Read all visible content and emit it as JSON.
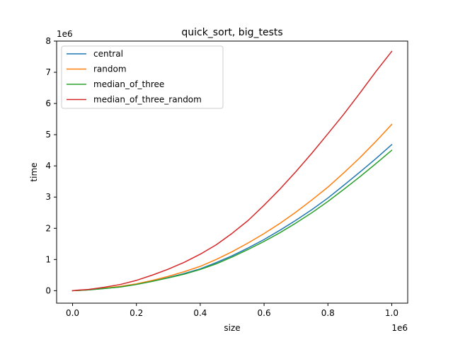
{
  "chart_data": {
    "type": "line",
    "title": "quick_sort, big_tests",
    "xlabel": "size",
    "ylabel": "time",
    "x_offset_label": "1e6",
    "y_offset_label": "1e6",
    "xlim": [
      -50000,
      1050000
    ],
    "ylim": [
      -400000,
      8000000
    ],
    "x_ticks": [
      0,
      200000,
      400000,
      600000,
      800000,
      1000000
    ],
    "x_tick_labels": [
      "0.0",
      "0.2",
      "0.4",
      "0.6",
      "0.8",
      "1.0"
    ],
    "y_ticks": [
      0,
      1000000,
      2000000,
      3000000,
      4000000,
      5000000,
      6000000,
      7000000,
      8000000
    ],
    "y_tick_labels": [
      "0",
      "1",
      "2",
      "3",
      "4",
      "5",
      "6",
      "7",
      "8"
    ],
    "grid": false,
    "legend_position": "top-left",
    "x": [
      0,
      20000,
      50000,
      100000,
      150000,
      200000,
      250000,
      300000,
      350000,
      400000,
      450000,
      500000,
      550000,
      600000,
      650000,
      700000,
      750000,
      800000,
      850000,
      900000,
      950000,
      1000000
    ],
    "series": [
      {
        "name": "central",
        "color": "#1f77b4",
        "values": [
          0,
          10000,
          25000,
          70000,
          120000,
          200000,
          300000,
          420000,
          550000,
          700000,
          900000,
          1120000,
          1370000,
          1640000,
          1940000,
          2260000,
          2600000,
          2970000,
          3380000,
          3800000,
          4230000,
          4680000
        ]
      },
      {
        "name": "random",
        "color": "#ff7f0e",
        "values": [
          0,
          10000,
          30000,
          80000,
          140000,
          220000,
          330000,
          460000,
          610000,
          780000,
          1000000,
          1250000,
          1530000,
          1830000,
          2160000,
          2520000,
          2910000,
          3320000,
          3780000,
          4260000,
          4780000,
          5330000
        ]
      },
      {
        "name": "median_of_three",
        "color": "#2ca02c",
        "values": [
          0,
          10000,
          25000,
          70000,
          120000,
          200000,
          300000,
          410000,
          530000,
          680000,
          860000,
          1080000,
          1320000,
          1580000,
          1860000,
          2170000,
          2500000,
          2860000,
          3250000,
          3650000,
          4070000,
          4500000
        ]
      },
      {
        "name": "median_of_three_random",
        "color": "#d62728",
        "values": [
          0,
          20000,
          40000,
          110000,
          200000,
          330000,
          500000,
          690000,
          910000,
          1170000,
          1470000,
          1840000,
          2250000,
          2740000,
          3260000,
          3820000,
          4410000,
          5030000,
          5660000,
          6330000,
          7020000,
          7670000
        ]
      }
    ]
  }
}
